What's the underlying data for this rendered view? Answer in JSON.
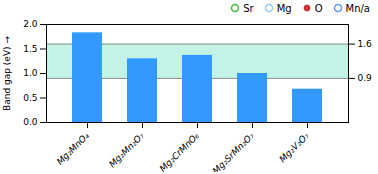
{
  "chart_data": {
    "type": "bar",
    "categories": [
      "Mg₂MnO₄",
      "Mg₂Mn₂O₇",
      "Mg₂CrMnO₆",
      "Mg₂SrMn₂O₇",
      "Mg₂V₂O₇"
    ],
    "values": [
      1.83,
      1.3,
      1.37,
      1.0,
      0.68
    ],
    "color": "#3399FF",
    "ylabel": "Band gap (eV)",
    "ylim": [
      0,
      2
    ],
    "yticks": [
      {
        "value": 0,
        "label": "0.0"
      },
      0.5,
      {
        "value": 1,
        "label": "1.0"
      },
      1.5,
      {
        "value": 2,
        "label": "2.0"
      }
    ],
    "y2lim": [
      0,
      2
    ],
    "y2ticks": [
      0.9,
      1.6
    ],
    "band": {
      "from": 0.9,
      "to": 1.6,
      "color": "#AAEEDD"
    },
    "hlines": [
      {
        "value": 0.9,
        "color": "#888888"
      },
      {
        "value": 1.6,
        "color": "#888888"
      }
    ],
    "legend": "upper right",
    "legend_items": [
      {
        "name": "Sr",
        "color": "#44BB44",
        "marker": "open_circle"
      },
      {
        "name": "Mg",
        "color": "#99CCEE",
        "marker": "open_circle"
      },
      {
        "name": "O",
        "color": "#CC3333",
        "marker": "dot"
      },
      {
        "name": "Mn/a",
        "color": "#6699DD",
        "marker": "open_circle"
      }
    ]
  }
}
